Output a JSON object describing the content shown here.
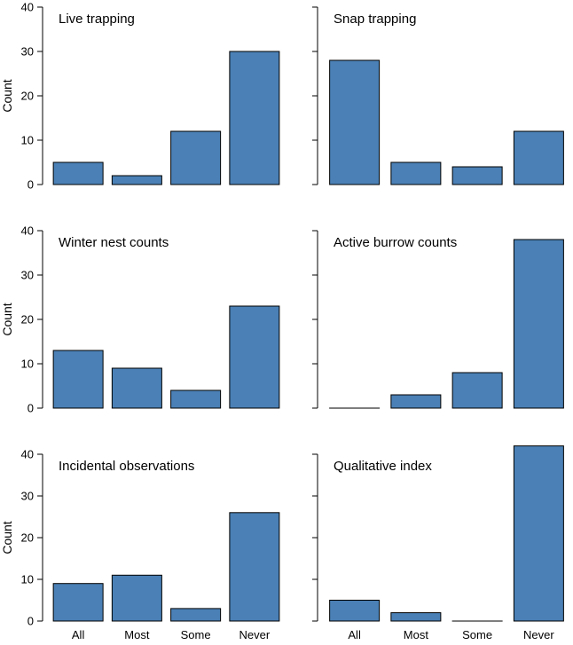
{
  "chart_data": {
    "type": "bar",
    "layout": "3x2 small multiples",
    "categories": [
      "All",
      "Most",
      "Some",
      "Never"
    ],
    "ylabel": "Count",
    "ylim": [
      0,
      40
    ],
    "yticks": [
      0,
      10,
      20,
      30,
      40
    ],
    "bar_color": "#4a80b5",
    "panels": [
      {
        "title": "Live trapping",
        "values": [
          5,
          2,
          12,
          30
        ]
      },
      {
        "title": "Snap trapping",
        "values": [
          28,
          5,
          4,
          12
        ]
      },
      {
        "title": "Winter nest counts",
        "values": [
          13,
          9,
          4,
          23
        ]
      },
      {
        "title": "Active burrow counts",
        "values": [
          0,
          3,
          8,
          38
        ]
      },
      {
        "title": "Incidental observations",
        "values": [
          9,
          11,
          3,
          26
        ]
      },
      {
        "title": "Qualitative index",
        "values": [
          5,
          2,
          0,
          42
        ]
      }
    ]
  }
}
